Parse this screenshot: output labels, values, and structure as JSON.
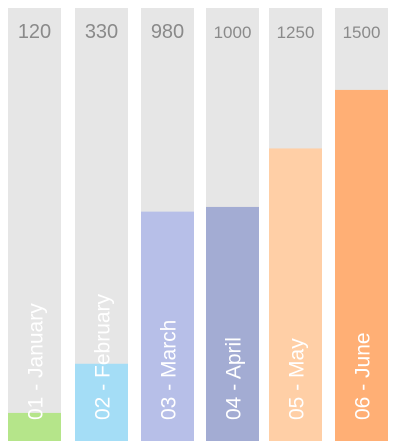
{
  "chart_data": {
    "type": "bar",
    "orientation": "vertical",
    "title": "",
    "xlabel": "",
    "ylabel": "",
    "grid": false,
    "ylim": [
      0,
      1850
    ],
    "categories": [
      "01 - January",
      "02 - February",
      "03 - March",
      "04 - April",
      "05 - May",
      "06 - June"
    ],
    "values": [
      120,
      330,
      980,
      1000,
      1250,
      1500
    ],
    "value_labels": [
      "120",
      "330",
      "980",
      "1000",
      "1250",
      "1500"
    ],
    "colors": [
      "#b5e58a",
      "#a4ddf6",
      "#b7bfe8",
      "#a3acd3",
      "#ffcfa6",
      "#ffaf75"
    ],
    "track_color": "#e6e6e6"
  }
}
